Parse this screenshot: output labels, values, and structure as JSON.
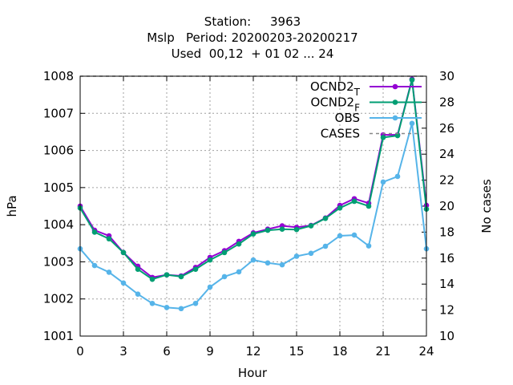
{
  "chart_data": {
    "type": "line",
    "title_lines": [
      "Station:     3963",
      "Mslp   Period: 20200203-20200217",
      "Used  00,12  + 01 02 ... 24"
    ],
    "xlabel": "Hour",
    "ylabel": "hPa",
    "y2label": "No cases",
    "xlim": [
      0,
      24
    ],
    "ylim": [
      1001,
      1008
    ],
    "y2lim": [
      10,
      30
    ],
    "xticks": [
      "0",
      "3",
      "6",
      "9",
      "12",
      "15",
      "18",
      "21",
      "24"
    ],
    "yticks": [
      "1001",
      "1002",
      "1003",
      "1004",
      "1005",
      "1006",
      "1007",
      "1008"
    ],
    "y2ticks": [
      "10",
      "12",
      "14",
      "16",
      "18",
      "20",
      "22",
      "24",
      "26",
      "28",
      "30"
    ],
    "grid": true,
    "legend_position": "top-right",
    "x": [
      0,
      1,
      2,
      3,
      4,
      5,
      6,
      7,
      8,
      9,
      10,
      11,
      12,
      13,
      14,
      15,
      16,
      17,
      18,
      19,
      20,
      21,
      22,
      23,
      24
    ],
    "series": [
      {
        "name": "OCND2",
        "sub": "T",
        "color": "#9400d3",
        "marker": "circle",
        "values": [
          1004.5,
          1003.85,
          1003.7,
          1003.25,
          1002.88,
          1002.58,
          1002.65,
          1002.62,
          1002.85,
          1003.12,
          1003.3,
          1003.55,
          1003.78,
          1003.88,
          1003.97,
          1003.93,
          1003.98,
          1004.18,
          1004.52,
          1004.7,
          1004.58,
          1006.42,
          1006.42,
          1007.92,
          1004.52
        ]
      },
      {
        "name": "OCND2",
        "sub": "F",
        "color": "#009e73",
        "marker": "circle",
        "values": [
          1004.45,
          1003.8,
          1003.62,
          1003.25,
          1002.8,
          1002.53,
          1002.65,
          1002.6,
          1002.8,
          1003.05,
          1003.25,
          1003.48,
          1003.75,
          1003.85,
          1003.88,
          1003.87,
          1003.97,
          1004.17,
          1004.45,
          1004.63,
          1004.5,
          1006.35,
          1006.4,
          1007.9,
          1004.42
        ]
      },
      {
        "name": "OBS",
        "color": "#56b4e9",
        "marker": "circle",
        "values": [
          1003.35,
          1002.9,
          1002.72,
          1002.43,
          1002.13,
          1001.88,
          1001.77,
          1001.74,
          1001.88,
          1002.32,
          1002.6,
          1002.73,
          1003.05,
          1002.97,
          1002.92,
          1003.15,
          1003.23,
          1003.42,
          1003.7,
          1003.72,
          1003.43,
          1005.15,
          1005.3,
          1006.73,
          1003.35
        ]
      },
      {
        "name": "CASES",
        "color": "#888888",
        "dashed": true,
        "axis": "y2",
        "values": [
          30,
          30,
          30,
          30,
          30,
          30,
          30,
          30,
          30,
          30,
          30,
          30,
          30,
          30,
          30,
          30,
          30,
          30,
          30,
          30,
          30,
          30,
          30,
          30,
          30
        ]
      }
    ]
  }
}
